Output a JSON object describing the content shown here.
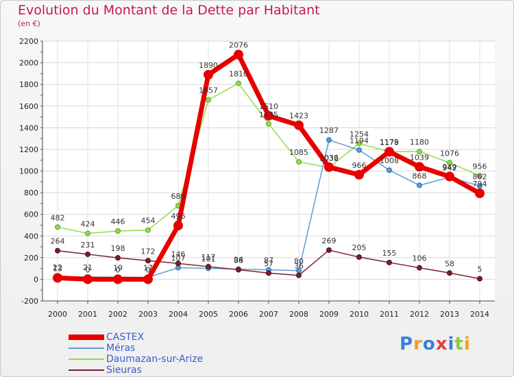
{
  "header": {
    "title": "Evolution du Montant de la Dette par Habitant",
    "subtitle": "(en €)"
  },
  "legend": {
    "items": [
      "CASTEX",
      "Méras",
      "Daumazan-sur-Arize",
      "Sieuras"
    ]
  },
  "logo": {
    "text": "Proxiti",
    "letters": [
      "P",
      "r",
      "o",
      "x",
      "i",
      "t",
      "i"
    ]
  },
  "colors": {
    "CASTEX": "#e60000",
    "Méras": "#5b9bd5",
    "Daumazan-sur-Arize": "#8fdc4a",
    "Sieuras": "#7a1f2b",
    "title": "#c2185b",
    "legend_text": "#3a5dcc"
  },
  "chart_data": {
    "type": "line",
    "title": "Evolution du Montant de la Dette par Habitant",
    "subtitle": "(en €)",
    "x": [
      "2000",
      "2001",
      "2002",
      "2003",
      "2004",
      "2005",
      "2006",
      "2007",
      "2008",
      "2009",
      "2010",
      "2011",
      "2012",
      "2013",
      "2014"
    ],
    "ylim": [
      -200,
      2200
    ],
    "yticks": [
      -200,
      0,
      200,
      400,
      600,
      800,
      1000,
      1200,
      1400,
      1600,
      1800,
      2000,
      2200
    ],
    "grid": true,
    "legend_position": "bottom-left",
    "series": [
      {
        "name": "Daumazan-sur-Arize",
        "values": [
          482,
          424,
          446,
          454,
          680,
          1657,
          1810,
          1435,
          1085,
          1032,
          1254,
          1179,
          1180,
          1076,
          956
        ],
        "labels": [
          "482",
          "424",
          "446",
          "454",
          "680",
          "1657",
          "1810",
          "1435",
          "1085",
          "1032",
          "1254",
          "1179",
          "1180",
          "1076",
          "956"
        ]
      },
      {
        "name": "Méras",
        "values": [
          22,
          21,
          19,
          17,
          107,
          101,
          94,
          87,
          80,
          1287,
          1194,
          1008,
          868,
          942,
          862
        ],
        "labels": [
          "22",
          "21",
          "19",
          "17",
          "107",
          "101",
          "94",
          "87",
          "80",
          "1287",
          "1194",
          "1008",
          "868",
          "942",
          "862"
        ]
      },
      {
        "name": "Sieuras",
        "values": [
          264,
          231,
          198,
          172,
          146,
          117,
          88,
          57,
          36,
          269,
          205,
          155,
          106,
          58,
          5
        ],
        "labels": [
          "264",
          "231",
          "198",
          "172",
          "146",
          "117",
          "88",
          "57",
          "36",
          "269",
          "205",
          "155",
          "106",
          "58",
          "5"
        ]
      },
      {
        "name": "CASTEX",
        "values": [
          13,
          0,
          0,
          0,
          496,
          1890,
          2076,
          1510,
          1423,
          1036,
          966,
          1178,
          1039,
          949,
          794
        ],
        "labels": [
          "13",
          "0",
          "0",
          "0",
          "496",
          "1890",
          "2076",
          "1510",
          "1423",
          "1036",
          "966",
          "1178",
          "1039",
          "949",
          "794"
        ]
      }
    ]
  }
}
